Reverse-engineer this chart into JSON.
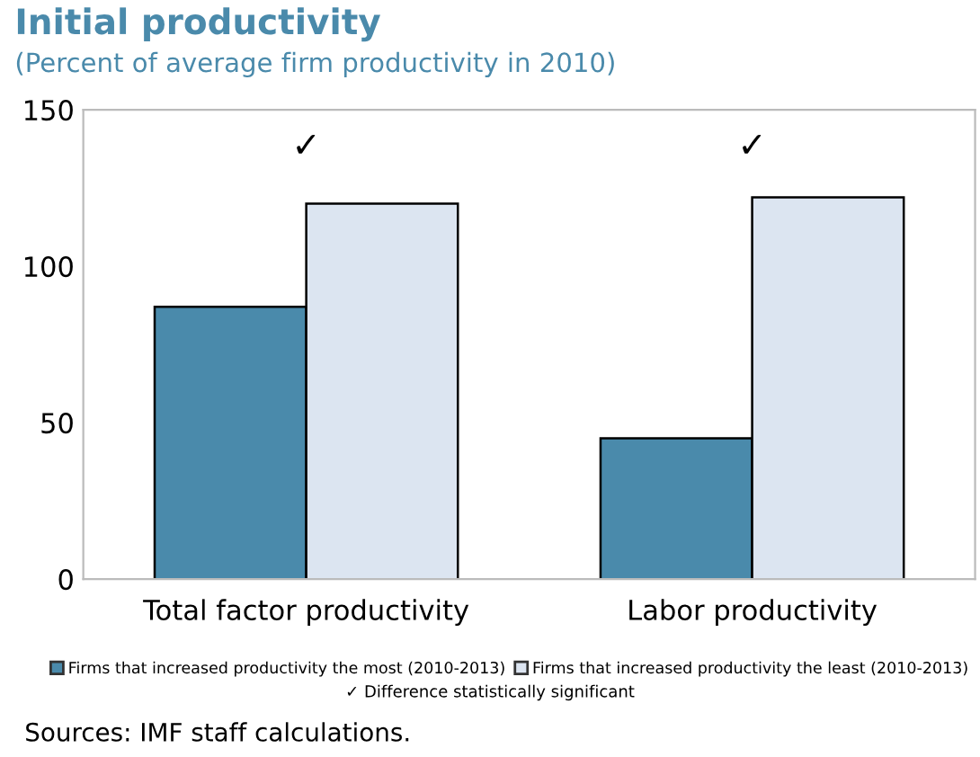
{
  "chart_data": {
    "type": "bar",
    "title": "Initial productivity",
    "subtitle": "(Percent of average firm productivity in 2010)",
    "categories": [
      "Total factor productivity",
      "Labor productivity"
    ],
    "series": [
      {
        "name": "Firms that increased productivity the most (2010-2013)",
        "color": "#4a8aab",
        "values": [
          87,
          45
        ]
      },
      {
        "name": "Firms that increased productivity the least (2010-2013)",
        "color": "#dce5f1",
        "values": [
          120,
          122
        ]
      }
    ],
    "ylim": [
      0,
      150
    ],
    "yticks": [
      0,
      50,
      100,
      150
    ],
    "grid": false,
    "legend": "bottom",
    "annotations": [
      "✓",
      "✓",
      "✓ Difference statistically significant",
      "Sources: IMF staff calculations."
    ]
  }
}
